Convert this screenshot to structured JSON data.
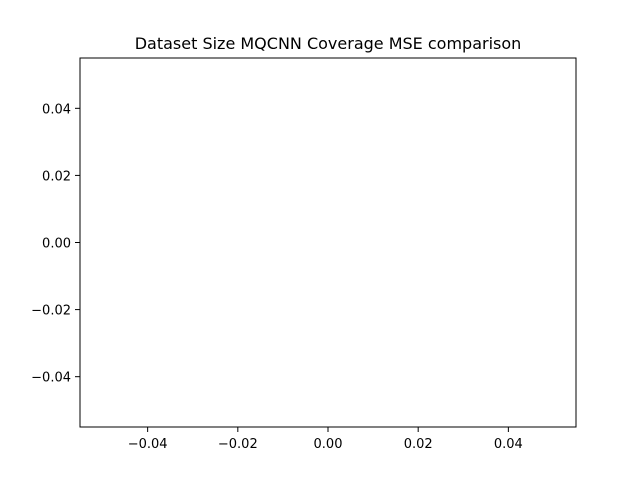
{
  "chart_data": {
    "type": "line",
    "title": "Dataset Size MQCNN Coverage MSE comparison",
    "xlabel": "",
    "ylabel": "",
    "xlim": [
      -0.055,
      0.055
    ],
    "ylim": [
      -0.055,
      0.055
    ],
    "x_ticks": [
      -0.04,
      -0.02,
      0.0,
      0.02,
      0.04
    ],
    "y_ticks": [
      -0.04,
      -0.02,
      0.0,
      0.02,
      0.04
    ],
    "x_tick_labels": [
      "−0.04",
      "−0.02",
      "0.00",
      "0.02",
      "0.04"
    ],
    "y_tick_labels": [
      "−0.04",
      "−0.02",
      "0.00",
      "0.02",
      "0.04"
    ],
    "series": [],
    "grid": false,
    "legend": "none"
  }
}
